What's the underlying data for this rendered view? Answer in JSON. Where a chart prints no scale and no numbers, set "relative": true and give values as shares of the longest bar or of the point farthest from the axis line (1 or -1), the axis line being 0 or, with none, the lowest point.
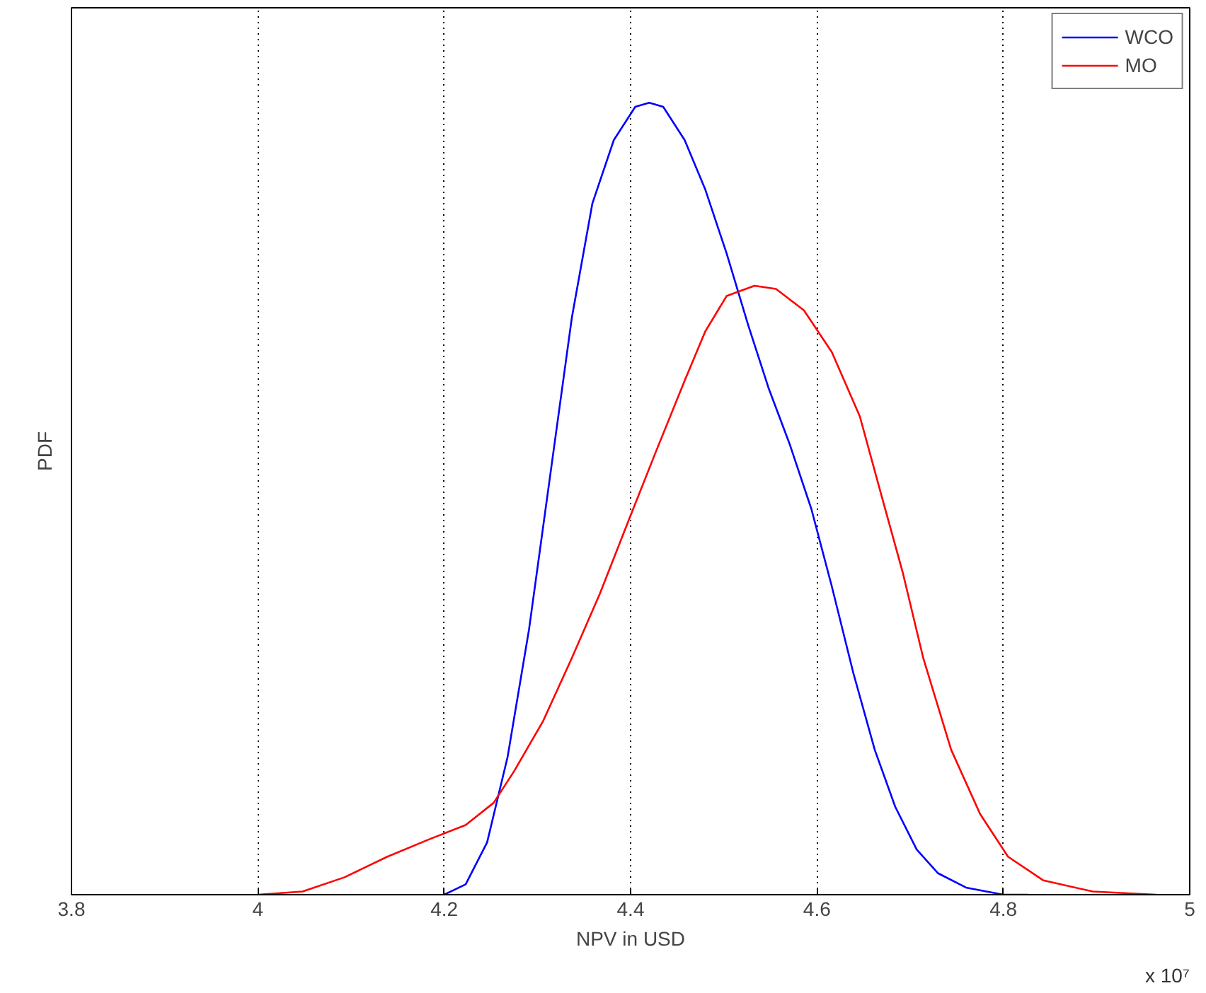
{
  "chart_data": {
    "type": "line",
    "relative": true,
    "xlabel": "NPV in USD",
    "ylabel": "PDF",
    "xlim": [
      3.8,
      5
    ],
    "xticks": [
      3.8,
      4,
      4.2,
      4.4,
      4.6,
      4.8,
      5
    ],
    "grid": "x",
    "legend": "top right",
    "line_style": "solid",
    "marker": "none",
    "annotations": [
      "x 10⁷"
    ],
    "series": [
      {
        "name": "WCO",
        "color": "#0000ff",
        "x": [
          4.2,
          4.223,
          4.246,
          4.268,
          4.291,
          4.314,
          4.337,
          4.359,
          4.382,
          4.405,
          4.42,
          4.435,
          4.458,
          4.48,
          4.503,
          4.526,
          4.548,
          4.571,
          4.594,
          4.616,
          4.639,
          4.662,
          4.684,
          4.707,
          4.73,
          4.76,
          4.8,
          4.827
        ],
        "values": [
          0,
          0.013,
          0.066,
          0.174,
          0.335,
          0.532,
          0.729,
          0.873,
          0.953,
          0.995,
          1,
          0.995,
          0.953,
          0.891,
          0.81,
          0.72,
          0.64,
          0.568,
          0.487,
          0.389,
          0.28,
          0.183,
          0.111,
          0.057,
          0.027,
          0.009,
          0,
          0
        ]
      },
      {
        "name": "MO",
        "color": "#ff0000",
        "x": [
          4.0,
          4.048,
          4.093,
          4.139,
          4.184,
          4.223,
          4.253,
          4.275,
          4.306,
          4.337,
          4.367,
          4.397,
          4.427,
          4.458,
          4.48,
          4.503,
          4.533,
          4.556,
          4.586,
          4.616,
          4.646,
          4.669,
          4.692,
          4.714,
          4.744,
          4.775,
          4.805,
          4.843,
          4.896,
          4.964
        ],
        "values": [
          0,
          0.004,
          0.022,
          0.048,
          0.07,
          0.088,
          0.116,
          0.156,
          0.219,
          0.299,
          0.38,
          0.47,
          0.559,
          0.649,
          0.711,
          0.756,
          0.769,
          0.765,
          0.738,
          0.685,
          0.604,
          0.505,
          0.407,
          0.299,
          0.183,
          0.102,
          0.048,
          0.018,
          0.004,
          0
        ]
      }
    ]
  }
}
